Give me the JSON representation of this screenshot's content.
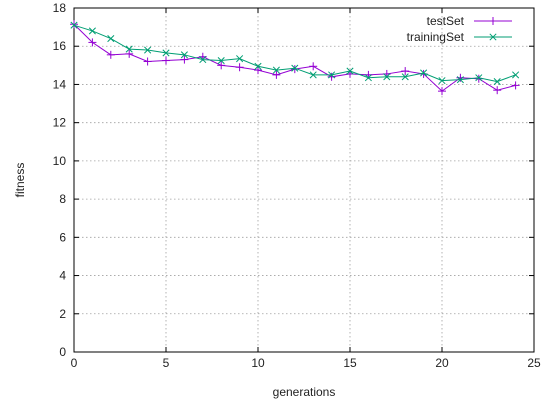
{
  "chart_data": {
    "type": "line",
    "title": "",
    "xlabel": "generations",
    "ylabel": "fitness",
    "xlim": [
      0,
      25
    ],
    "ylim": [
      0,
      18
    ],
    "x_ticks": [
      0,
      5,
      10,
      15,
      20,
      25
    ],
    "y_ticks": [
      0,
      2,
      4,
      6,
      8,
      10,
      12,
      14,
      16,
      18
    ],
    "grid": true,
    "legend_position": "top-right",
    "x": [
      0,
      1,
      2,
      3,
      4,
      5,
      6,
      7,
      8,
      9,
      10,
      11,
      12,
      13,
      14,
      15,
      16,
      17,
      18,
      19,
      20,
      21,
      22,
      23,
      24
    ],
    "series": [
      {
        "name": "testSet",
        "color": "#9400d3",
        "marker": "plus",
        "values": [
          17.15,
          16.2,
          15.55,
          15.6,
          15.2,
          15.25,
          15.3,
          15.45,
          15.0,
          14.9,
          14.75,
          14.5,
          14.8,
          14.95,
          14.4,
          14.55,
          14.5,
          14.55,
          14.7,
          14.55,
          13.65,
          14.35,
          14.3,
          13.7,
          13.95
        ]
      },
      {
        "name": "trainingSet",
        "color": "#009e73",
        "marker": "cross",
        "values": [
          17.1,
          16.8,
          16.4,
          15.85,
          15.8,
          15.65,
          15.55,
          15.3,
          15.25,
          15.35,
          14.95,
          14.75,
          14.85,
          14.5,
          14.5,
          14.7,
          14.35,
          14.4,
          14.4,
          14.6,
          14.2,
          14.25,
          14.35,
          14.15,
          14.5
        ]
      }
    ]
  }
}
